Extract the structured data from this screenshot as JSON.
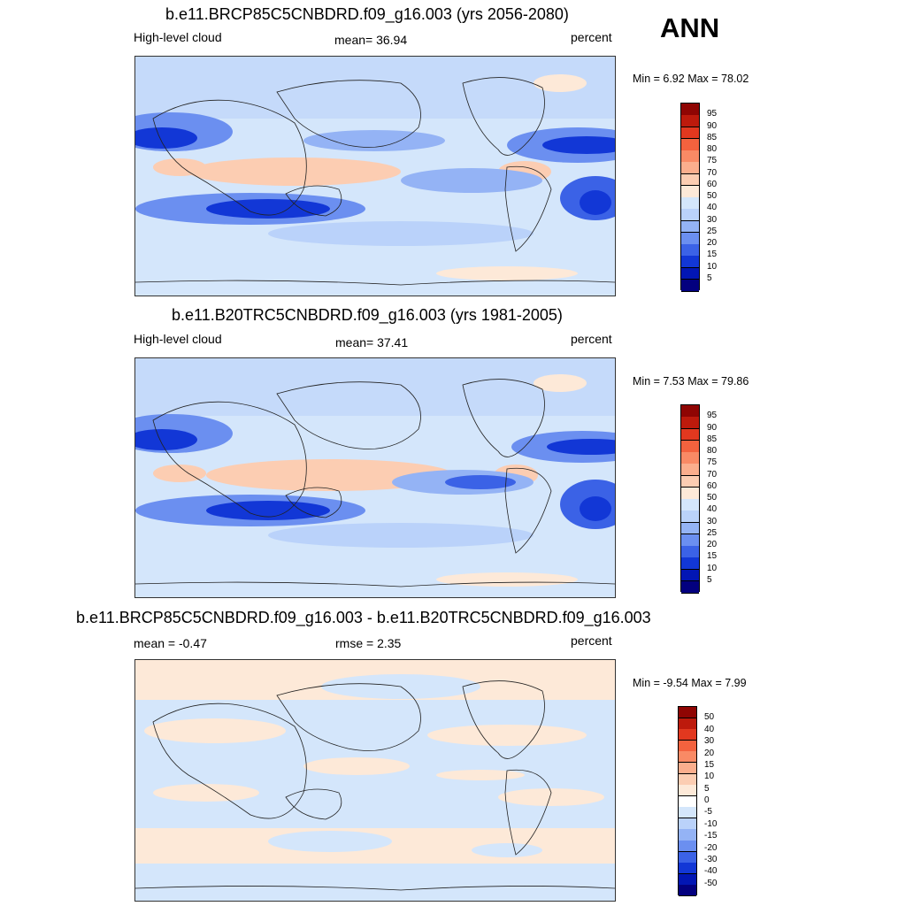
{
  "season": "ANN",
  "colors": {
    "abs_scale": [
      "#03007f",
      "#0216b4",
      "#1237d6",
      "#3b62e6",
      "#6b8ff0",
      "#94b3f5",
      "#bad2fa",
      "#d4e6fb",
      "#fde9d8",
      "#fccdb2",
      "#fbae8d",
      "#f98a65",
      "#f3623e",
      "#e2381f",
      "#bd1a0c",
      "#8f0503"
    ],
    "diff_scale": [
      "#03007f",
      "#0216b4",
      "#1237d6",
      "#3b62e6",
      "#6b8ff0",
      "#94b3f5",
      "#bad2fa",
      "#d4e6fb",
      "#ffffff",
      "#fde9d8",
      "#fccdb2",
      "#fbae8d",
      "#f98a65",
      "#f3623e",
      "#e2381f",
      "#bd1a0c",
      "#8f0503"
    ]
  },
  "panels": [
    {
      "title": "b.e11.BRCP85C5CNBDRD.f09_g16.003 (yrs 2056-2080)",
      "left_label": "High-level cloud",
      "center_label": "mean=  36.94",
      "right_label": "percent",
      "minmax": "Min =   6.92 Max =  78.02",
      "colorbar_ticks": [
        "95",
        "90",
        "85",
        "80",
        "75",
        "70",
        "60",
        "50",
        "40",
        "30",
        "25",
        "20",
        "15",
        "10",
        "5"
      ]
    },
    {
      "title": "b.e11.B20TRC5CNBDRD.f09_g16.003 (yrs 1981-2005)",
      "left_label": "High-level cloud",
      "center_label": "mean=  37.41",
      "right_label": "percent",
      "minmax": "Min =   7.53 Max =  79.86",
      "colorbar_ticks": [
        "95",
        "90",
        "85",
        "80",
        "75",
        "70",
        "60",
        "50",
        "40",
        "30",
        "25",
        "20",
        "15",
        "10",
        "5"
      ]
    },
    {
      "title": "b.e11.BRCP85C5CNBDRD.f09_g16.003 - b.e11.B20TRC5CNBDRD.f09_g16.003",
      "left_label": "mean =  -0.47",
      "center_label": "rmse =   2.35",
      "right_label": "percent",
      "minmax": "Min =  -9.54 Max =   7.99",
      "colorbar_ticks": [
        "50",
        "40",
        "30",
        "20",
        "15",
        "10",
        "5",
        "0",
        "-5",
        "-10",
        "-15",
        "-20",
        "-30",
        "-40",
        "-50"
      ]
    }
  ],
  "chart_data": [
    {
      "type": "heatmap",
      "title": "b.e11.BRCP85C5CNBDRD.f09_g16.003 (yrs 2056-2080)",
      "variable": "High-level cloud",
      "units": "percent",
      "mean": 36.94,
      "min": 6.92,
      "max": 78.02,
      "contour_levels": [
        5,
        10,
        15,
        20,
        25,
        30,
        40,
        50,
        60,
        70,
        75,
        80,
        85,
        90,
        95
      ]
    },
    {
      "type": "heatmap",
      "title": "b.e11.B20TRC5CNBDRD.f09_g16.003 (yrs 1981-2005)",
      "variable": "High-level cloud",
      "units": "percent",
      "mean": 37.41,
      "min": 7.53,
      "max": 79.86,
      "contour_levels": [
        5,
        10,
        15,
        20,
        25,
        30,
        40,
        50,
        60,
        70,
        75,
        80,
        85,
        90,
        95
      ]
    },
    {
      "type": "heatmap",
      "title": "b.e11.BRCP85C5CNBDRD.f09_g16.003 - b.e11.B20TRC5CNBDRD.f09_g16.003",
      "units": "percent",
      "mean": -0.47,
      "rmse": 2.35,
      "min": -9.54,
      "max": 7.99,
      "contour_levels": [
        -50,
        -40,
        -30,
        -20,
        -15,
        -10,
        -5,
        0,
        5,
        10,
        15,
        20,
        30,
        40,
        50
      ]
    }
  ]
}
